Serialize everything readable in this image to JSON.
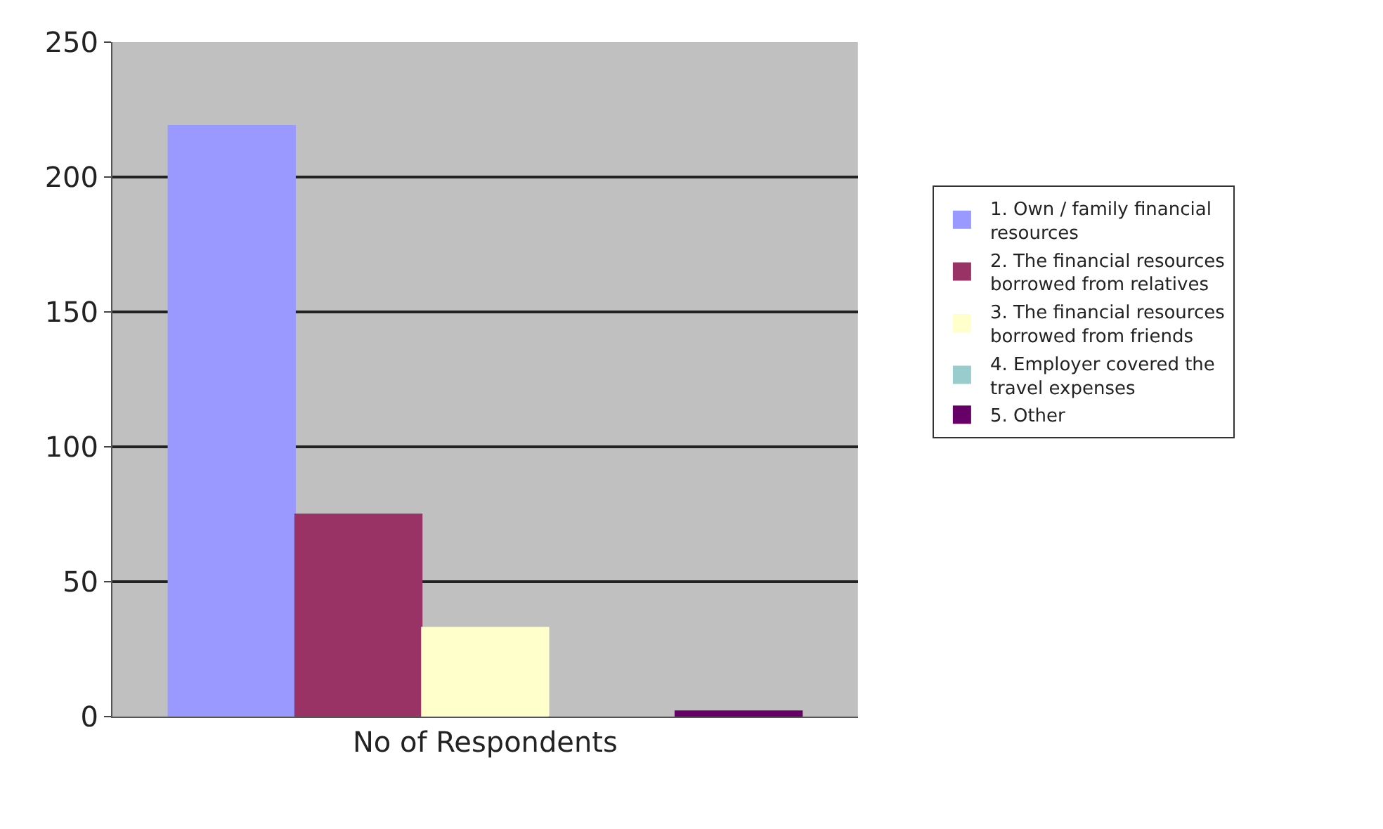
{
  "chart_data": {
    "type": "bar",
    "categories": [
      "No of Respondents"
    ],
    "series": [
      {
        "name": "1. Own / family financial resources",
        "color": "#9999ff",
        "values": [
          219
        ]
      },
      {
        "name": "2. The financial resources borrowed from relatives",
        "color": "#993366",
        "values": [
          75
        ]
      },
      {
        "name": "3. The financial resources borrowed from friends",
        "color": "#ffffcc",
        "values": [
          33
        ]
      },
      {
        "name": "4. Employer covered the travel expenses",
        "color": "#99cccc",
        "values": [
          0
        ]
      },
      {
        "name": "5. Other",
        "color": "#660066",
        "values": [
          2
        ]
      }
    ],
    "ylim": [
      0,
      250
    ],
    "yticks": [
      0,
      50,
      100,
      150,
      200,
      250
    ],
    "grid": "y",
    "legend": "right"
  }
}
